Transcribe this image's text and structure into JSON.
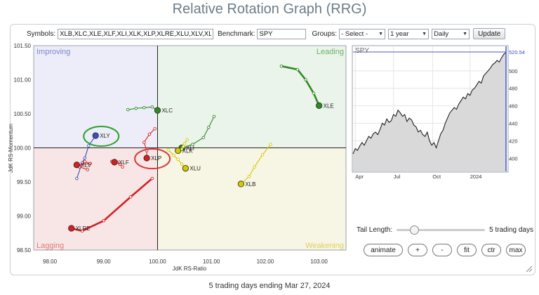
{
  "title": "Relative Rotation Graph (RRG)",
  "toolbar": {
    "symbols_label": "Symbols:",
    "symbols_value": "XLB,XLC,XLE,XLF,XLI,XLK,XLP,XLRE,XLU,XLV,XLY",
    "benchmark_label": "Benchmark:",
    "benchmark_value": "SPY",
    "groups_label": "Groups:",
    "groups_value": "- Select -",
    "period_value": "1 year",
    "interval_value": "Daily",
    "update_label": "Update"
  },
  "quadrants": {
    "improving": "Improving",
    "leading": "Leading",
    "lagging": "Lagging",
    "weakening": "Weakening",
    "colors": {
      "improving": "#ecedf8",
      "leading": "#eaf4ea",
      "lagging": "#f8e6e6",
      "weakening": "#f7f5e4"
    },
    "label_colors": {
      "improving": "#7f86d0",
      "leading": "#6ab36a",
      "lagging": "#e07a7a",
      "weakening": "#e2cf5a"
    }
  },
  "chart_data": [
    {
      "type": "scatter",
      "title": "",
      "xlabel": "JdK RS-Ratio",
      "ylabel": "JdK RS-Momentum",
      "xlim": [
        97.7,
        103.5
      ],
      "ylim": [
        98.5,
        101.5
      ],
      "x_ticks": [
        "98.00",
        "99.00",
        "100.00",
        "101.00",
        "102.00",
        "103.00"
      ],
      "y_ticks": [
        "98.50",
        "99.00",
        "99.50",
        "100.00",
        "100.50",
        "101.00",
        "101.50"
      ],
      "center": [
        100,
        100
      ],
      "series": [
        {
          "name": "XLE",
          "color": "#2e8b20",
          "label": "XLE",
          "tail": [
            [
              102.3,
              101.2
            ],
            [
              102.6,
              101.15
            ],
            [
              102.75,
              101.0
            ],
            [
              102.9,
              100.8
            ],
            [
              103.0,
              100.62
            ]
          ]
        },
        {
          "name": "XLC",
          "color": "#2e8b20",
          "label": "XLC",
          "tail": [
            [
              99.45,
              100.56
            ],
            [
              99.6,
              100.58
            ],
            [
              99.75,
              100.59
            ],
            [
              99.9,
              100.6
            ],
            [
              100.0,
              100.55
            ]
          ]
        },
        {
          "name": "XLI",
          "color": "#2e8b20",
          "label": "XLI",
          "tail": [
            [
              101.05,
              100.46
            ],
            [
              100.95,
              100.3
            ],
            [
              100.85,
              100.15
            ],
            [
              100.65,
              100.05
            ],
            [
              100.45,
              100.0
            ]
          ]
        },
        {
          "name": "XLK",
          "color": "#d4c800",
          "label": "XLK",
          "tail": [
            [
              100.55,
              100.12
            ],
            [
              100.5,
              100.06
            ],
            [
              100.48,
              100.02
            ],
            [
              100.45,
              99.98
            ],
            [
              100.38,
              99.96
            ]
          ]
        },
        {
          "name": "XLU",
          "color": "#d4c800",
          "label": "XLU",
          "tail": [
            [
              100.2,
              99.97
            ],
            [
              100.3,
              99.89
            ],
            [
              100.38,
              99.83
            ],
            [
              100.45,
              99.76
            ],
            [
              100.52,
              99.7
            ]
          ]
        },
        {
          "name": "XLB",
          "color": "#d4c800",
          "label": "XLB",
          "tail": [
            [
              102.1,
              100.05
            ],
            [
              101.95,
              99.9
            ],
            [
              101.8,
              99.72
            ],
            [
              101.7,
              99.58
            ],
            [
              101.55,
              99.47
            ]
          ]
        },
        {
          "name": "XLY",
          "color": "#3b4fc0",
          "label": "XLY",
          "tail": [
            [
              98.5,
              99.55
            ],
            [
              98.6,
              99.78
            ],
            [
              98.65,
              99.85
            ],
            [
              98.72,
              100.03
            ],
            [
              98.85,
              100.18
            ]
          ]
        },
        {
          "name": "XLP",
          "color": "#d42020",
          "label": "XLP",
          "tail": [
            [
              99.95,
              100.28
            ],
            [
              99.85,
              100.2
            ],
            [
              99.75,
              100.08
            ],
            [
              99.8,
              99.96
            ],
            [
              99.8,
              99.85
            ]
          ]
        },
        {
          "name": "XLV",
          "color": "#d42020",
          "label": "XLV",
          "tail": [
            [
              98.7,
              99.68
            ],
            [
              98.55,
              99.72
            ],
            [
              98.65,
              99.8
            ],
            [
              98.75,
              99.77
            ],
            [
              98.5,
              99.75
            ]
          ]
        },
        {
          "name": "XLF",
          "color": "#d42020",
          "label": "XLF",
          "tail": [
            [
              99.35,
              99.72
            ],
            [
              99.3,
              99.76
            ],
            [
              99.25,
              99.79
            ],
            [
              99.15,
              99.8
            ],
            [
              99.2,
              99.79
            ]
          ]
        },
        {
          "name": "XLRE",
          "color": "#d42020",
          "label": "XLRE",
          "tail": [
            [
              99.9,
              99.55
            ],
            [
              99.5,
              99.28
            ],
            [
              99.0,
              98.93
            ],
            [
              98.6,
              98.78
            ],
            [
              98.4,
              98.82
            ]
          ]
        }
      ],
      "highlights": [
        {
          "target": "XLY",
          "color": "#2ea12e"
        },
        {
          "target": "XLP",
          "color": "#d83a3a"
        }
      ]
    },
    {
      "type": "line",
      "title": "SPY",
      "last_value": "520.54",
      "x_ticks": [
        "Apr",
        "Jul",
        "Oct",
        "2024"
      ],
      "y_ticks": [
        "400",
        "420",
        "440",
        "460",
        "480",
        "500"
      ],
      "ylim": [
        385,
        528
      ],
      "x_tick_positions": [
        0.015,
        0.265,
        0.52,
        0.765
      ],
      "values": [
        405,
        411,
        409,
        414,
        418,
        415,
        420,
        425,
        423,
        428,
        430,
        427,
        433,
        440,
        438,
        445,
        441,
        443,
        450,
        448,
        455,
        452,
        448,
        450,
        442,
        446,
        444,
        438,
        436,
        430,
        432,
        427,
        425,
        430,
        420,
        415,
        418,
        412,
        420,
        428,
        432,
        440,
        446,
        452,
        455,
        458,
        456,
        462,
        466,
        470,
        468,
        474,
        472,
        478,
        480,
        484,
        488,
        486,
        494,
        497,
        500,
        503,
        507,
        509,
        512,
        510,
        515,
        519,
        521
      ]
    }
  ],
  "tail_length": {
    "label": "Tail Length:",
    "value": 5,
    "max": 30,
    "value_label": "5 trading days"
  },
  "buttons": {
    "animate": "animate",
    "plus": "+",
    "minus": "-",
    "fit": "fit",
    "ctr": "ctr",
    "max": "max"
  },
  "footer": "5 trading days ending Mar 27, 2024"
}
